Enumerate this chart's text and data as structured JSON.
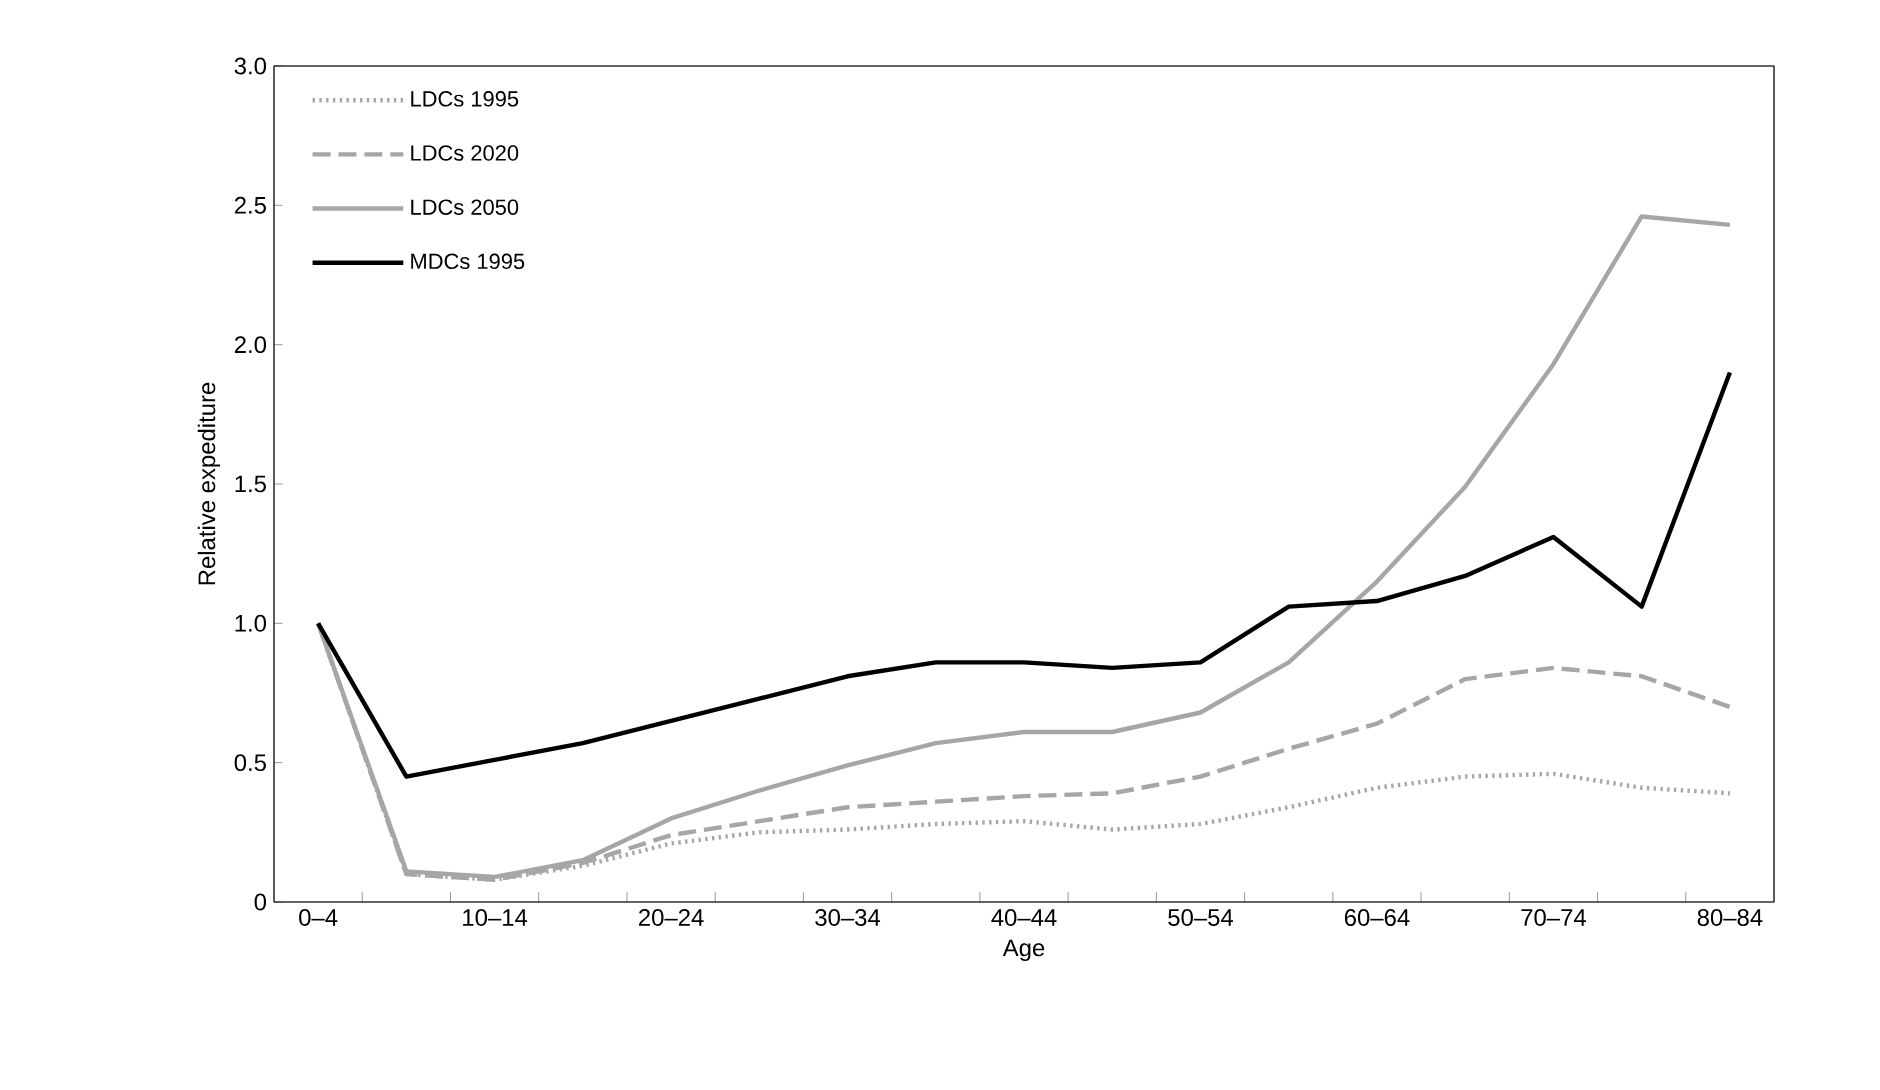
{
  "chart_data": {
    "type": "line",
    "xlabel": "Age",
    "ylabel": "Relative expediture",
    "categories": [
      "0–4",
      null,
      "10–14",
      null,
      "20–24",
      null,
      "30–34",
      null,
      "40–44",
      null,
      "50–54",
      null,
      "60–64",
      null,
      "70–74",
      null,
      "80–84"
    ],
    "series": [
      {
        "name": "LDCs 1995",
        "color": "#a6a6a6",
        "line_style": "dotted",
        "values": [
          1.0,
          0.1,
          0.08,
          0.13,
          0.21,
          0.25,
          0.26,
          0.28,
          0.29,
          0.26,
          0.28,
          0.34,
          0.41,
          0.45,
          0.46,
          0.41,
          0.39
        ]
      },
      {
        "name": "LDCs 2020",
        "color": "#a6a6a6",
        "line_style": "dashed",
        "values": [
          1.0,
          0.1,
          0.08,
          0.14,
          0.24,
          0.29,
          0.34,
          0.36,
          0.38,
          0.39,
          0.45,
          0.55,
          0.64,
          0.8,
          0.84,
          0.81,
          0.7
        ]
      },
      {
        "name": "LDCs 2050",
        "color": "#a6a6a6",
        "line_style": "solid",
        "values": [
          1.0,
          0.11,
          0.09,
          0.15,
          0.3,
          0.4,
          0.49,
          0.57,
          0.61,
          0.61,
          0.68,
          0.86,
          1.15,
          1.49,
          1.93,
          2.46,
          2.43
        ]
      },
      {
        "name": "MDCs 1995",
        "color": "#000000",
        "line_style": "solid",
        "values": [
          1.0,
          0.45,
          0.51,
          0.57,
          0.65,
          0.73,
          0.81,
          0.86,
          0.86,
          0.84,
          0.86,
          1.06,
          1.08,
          1.17,
          1.31,
          1.06,
          1.9
        ]
      }
    ],
    "ylim": [
      0,
      3
    ],
    "yticks": [
      0,
      {
        "value": 0.5,
        "label": "0.5"
      },
      {
        "value": 1,
        "label": "1.0"
      },
      {
        "value": 1.5,
        "label": "1.5"
      },
      {
        "value": 2,
        "label": "2.0"
      },
      {
        "value": 2.5,
        "label": "2.5"
      },
      {
        "value": 3,
        "label": "3.0"
      }
    ],
    "legend": "top left",
    "grid": false,
    "marker": "none"
  }
}
